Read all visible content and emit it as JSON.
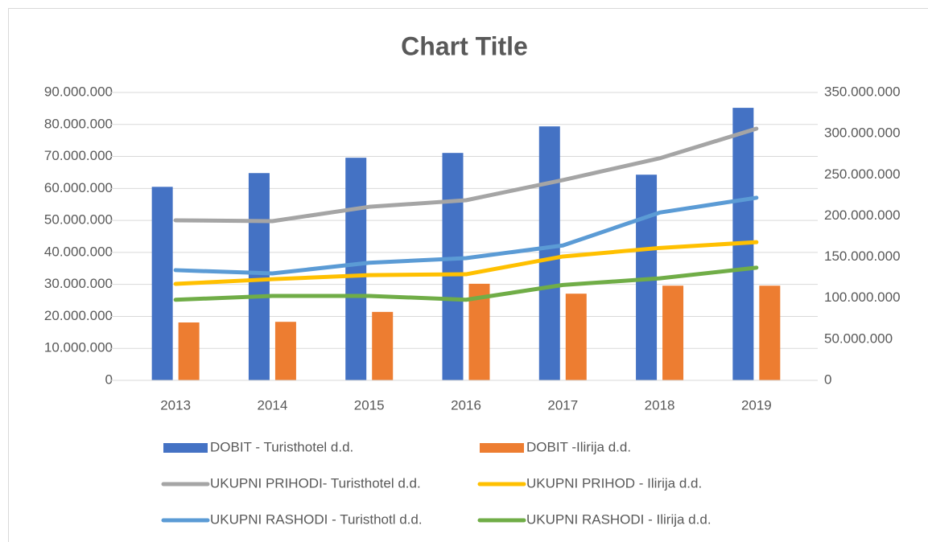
{
  "chart_data": {
    "type": "bar",
    "title": "Chart Title",
    "categories": [
      "2013",
      "2014",
      "2015",
      "2016",
      "2017",
      "2018",
      "2019"
    ],
    "ylim": [
      0,
      90000000
    ],
    "yticks": [
      {
        "value": 0,
        "label": "0"
      },
      {
        "value": 10000000,
        "label": "10.000.000"
      },
      {
        "value": 20000000,
        "label": "20.000.000"
      },
      {
        "value": 30000000,
        "label": "30.000.000"
      },
      {
        "value": 40000000,
        "label": "40.000.000"
      },
      {
        "value": 50000000,
        "label": "50.000.000"
      },
      {
        "value": 60000000,
        "label": "60.000.000"
      },
      {
        "value": 70000000,
        "label": "70.000.000"
      },
      {
        "value": 80000000,
        "label": "80.000.000"
      },
      {
        "value": 90000000,
        "label": "90.000.000"
      }
    ],
    "y2lim": [
      0,
      350000000
    ],
    "y2ticks": [
      {
        "value": 0,
        "label": "0"
      },
      {
        "value": 50000000,
        "label": "50.000.000"
      },
      {
        "value": 100000000,
        "label": "100.000.000"
      },
      {
        "value": 150000000,
        "label": "150.000.000"
      },
      {
        "value": 200000000,
        "label": "200.000.000"
      },
      {
        "value": 250000000,
        "label": "250.000.000"
      },
      {
        "value": 300000000,
        "label": "300.000.000"
      },
      {
        "value": 350000000,
        "label": "350.000.000"
      }
    ],
    "grid": true,
    "legend": "bottom",
    "series": [
      {
        "name": "DOBIT - Turisthotel d.d.",
        "type": "bar",
        "color": "#4472c4",
        "values": [
          60500000,
          64800000,
          69600000,
          71100000,
          79400000,
          64300000,
          85200000
        ]
      },
      {
        "name": "DOBIT -Ilirija d.d.",
        "type": "bar",
        "color": "#ed7d31",
        "values": [
          18100000,
          18300000,
          21400000,
          30200000,
          27100000,
          29600000,
          29600000
        ]
      },
      {
        "name": "UKUPNI PRIHODI- Turisthotel d.d.",
        "type": "line",
        "axis": "y2",
        "color": "#a5a5a5",
        "values": [
          194600000,
          193600000,
          211000000,
          219000000,
          243500000,
          270000000,
          306000000
        ]
      },
      {
        "name": "UKUPNI PRIHOD - Ilirija d.d.",
        "type": "line",
        "axis": "y2",
        "color": "#ffc000",
        "values": [
          117300000,
          123000000,
          128000000,
          129000000,
          150600000,
          161000000,
          168000000
        ]
      },
      {
        "name": "UKUPNI RASHODI - Turisthotl d.d.",
        "type": "line",
        "axis": "y2",
        "color": "#5b9bd5",
        "values": [
          134000000,
          130000000,
          143000000,
          148600000,
          164000000,
          204000000,
          222000000
        ]
      },
      {
        "name": "UKUPNI RASHODI - Ilirija d.d.",
        "type": "line",
        "axis": "y2",
        "color": "#70ad47",
        "values": [
          98000000,
          102700000,
          102700000,
          98000000,
          116000000,
          124000000,
          137000000
        ]
      }
    ]
  }
}
